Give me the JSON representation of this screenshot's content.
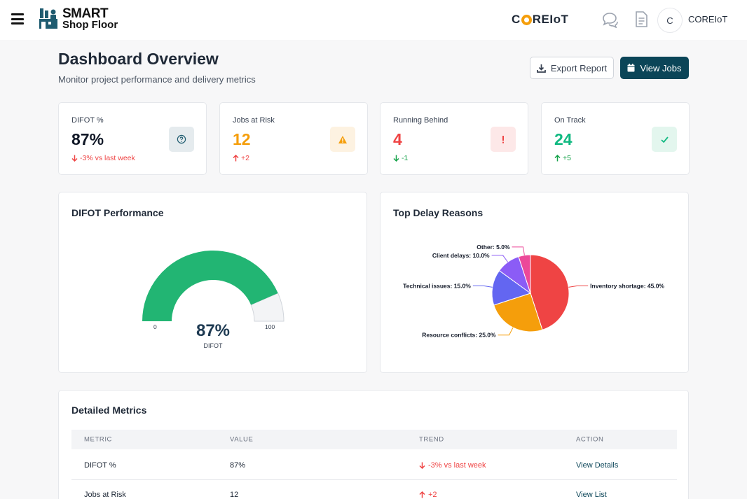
{
  "app": {
    "logo_line1": "SMART",
    "logo_line2": "Shop Floor",
    "brand_prefix": "C",
    "brand_suffix": "REIoT",
    "user_initial": "C",
    "user_name": "COREIoT"
  },
  "header": {
    "title": "Dashboard Overview",
    "subtitle": "Monitor project performance and delivery metrics",
    "export_label": "Export Report",
    "view_jobs_label": "View Jobs"
  },
  "stats": [
    {
      "label": "DIFOT %",
      "value": "87%",
      "change": "-3% vs last week",
      "direction": "down",
      "color": "#111827",
      "change_color": "#ef4444",
      "badge_icon": "question-icon",
      "badge_bg": "#e5ebee",
      "badge_fg": "#1f5c70"
    },
    {
      "label": "Jobs at Risk",
      "value": "12",
      "change": "+2",
      "direction": "up",
      "color": "#f59e0b",
      "change_color": "#ef4444",
      "badge_icon": "warning-icon",
      "badge_bg": "#fdf2e1",
      "badge_fg": "#f59e0b"
    },
    {
      "label": "Running Behind",
      "value": "4",
      "change": "-1",
      "direction": "down",
      "color": "#ef4444",
      "change_color": "#16a34a",
      "badge_icon": "exclamation-icon",
      "badge_bg": "#fde8e8",
      "badge_fg": "#ef4444"
    },
    {
      "label": "On Track",
      "value": "24",
      "change": "+5",
      "direction": "up",
      "color": "#10b981",
      "change_color": "#16a34a",
      "badge_icon": "check-icon",
      "badge_bg": "#e3f6ee",
      "badge_fg": "#10b981"
    }
  ],
  "difot_panel": {
    "title": "DIFOT Performance",
    "value_label": "87%",
    "caption": "DIFOT",
    "min_label": "0",
    "max_label": "100",
    "value": 87,
    "fill_color": "#22b573",
    "track_color": "#f3f4f6"
  },
  "delay_panel": {
    "title": "Top Delay Reasons"
  },
  "chart_data": {
    "type": "pie",
    "title": "Top Delay Reasons",
    "slices": [
      {
        "label": "Inventory shortage: 45.0%",
        "value": 45,
        "color": "#ef4444"
      },
      {
        "label": "Resource conflicts: 25.0%",
        "value": 25,
        "color": "#f59e0b"
      },
      {
        "label": "Technical issues: 15.0%",
        "value": 15,
        "color": "#6366f1"
      },
      {
        "label": "Client delays: 10.0%",
        "value": 10,
        "color": "#8b5cf6"
      },
      {
        "label": "Other: 5.0%",
        "value": 5,
        "color": "#ec4899"
      }
    ]
  },
  "metrics": {
    "title": "Detailed Metrics",
    "columns": [
      "METRIC",
      "VALUE",
      "TREND",
      "ACTION"
    ],
    "rows": [
      {
        "metric": "DIFOT %",
        "value": "87%",
        "trend": "-3% vs last week",
        "direction": "down",
        "action": "View Details"
      },
      {
        "metric": "Jobs at Risk",
        "value": "12",
        "trend": "+2",
        "direction": "up",
        "action": "View List"
      }
    ]
  }
}
